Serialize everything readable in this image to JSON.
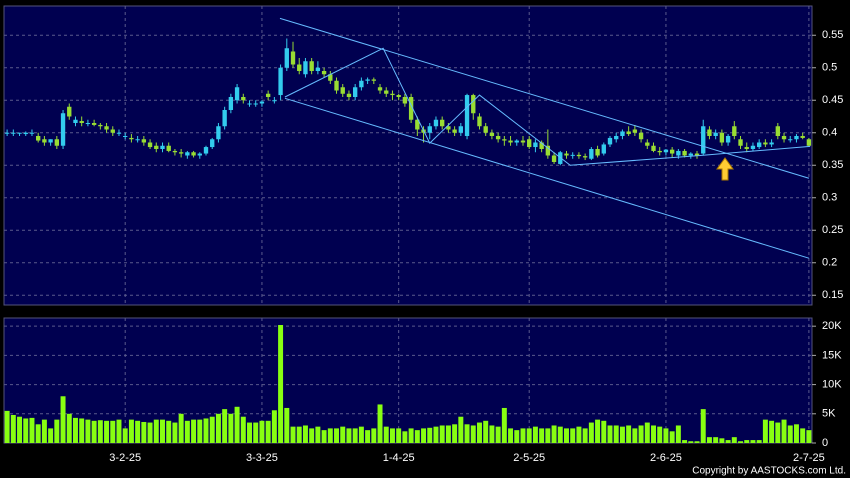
{
  "chart_data": [
    {
      "type": "candlestick",
      "ylim": [
        0.135,
        0.595
      ],
      "yticks": [
        0.15,
        0.2,
        0.25,
        0.3,
        0.35,
        0.4,
        0.45,
        0.5,
        0.55
      ],
      "grid": true,
      "colors": {
        "up": "#33ccee",
        "down": "#99dd33",
        "trendline": "#66bbff"
      },
      "ohlc": [
        [
          0.4,
          0.405,
          0.395,
          0.4
        ],
        [
          0.4,
          0.405,
          0.395,
          0.4
        ],
        [
          0.4,
          0.4,
          0.395,
          0.4
        ],
        [
          0.398,
          0.402,
          0.395,
          0.4
        ],
        [
          0.4,
          0.405,
          0.395,
          0.4
        ],
        [
          0.395,
          0.4,
          0.385,
          0.388
        ],
        [
          0.39,
          0.395,
          0.38,
          0.385
        ],
        [
          0.385,
          0.39,
          0.38,
          0.39
        ],
        [
          0.39,
          0.395,
          0.375,
          0.38
        ],
        [
          0.38,
          0.435,
          0.375,
          0.43
        ],
        [
          0.44,
          0.445,
          0.42,
          0.425
        ],
        [
          0.415,
          0.425,
          0.41,
          0.42
        ],
        [
          0.418,
          0.425,
          0.41,
          0.415
        ],
        [
          0.415,
          0.42,
          0.41,
          0.415
        ],
        [
          0.415,
          0.42,
          0.41,
          0.412
        ],
        [
          0.412,
          0.415,
          0.405,
          0.41
        ],
        [
          0.41,
          0.415,
          0.4,
          0.405
        ],
        [
          0.405,
          0.41,
          0.395,
          0.4
        ],
        [
          0.4,
          0.405,
          0.395,
          0.4
        ],
        [
          0.395,
          0.4,
          0.39,
          0.395
        ],
        [
          0.392,
          0.398,
          0.385,
          0.39
        ],
        [
          0.39,
          0.395,
          0.385,
          0.39
        ],
        [
          0.39,
          0.395,
          0.38,
          0.385
        ],
        [
          0.385,
          0.39,
          0.375,
          0.378
        ],
        [
          0.38,
          0.385,
          0.37,
          0.375
        ],
        [
          0.375,
          0.385,
          0.37,
          0.38
        ],
        [
          0.38,
          0.385,
          0.37,
          0.372
        ],
        [
          0.372,
          0.375,
          0.365,
          0.37
        ],
        [
          0.37,
          0.375,
          0.362,
          0.368
        ],
        [
          0.365,
          0.372,
          0.36,
          0.37
        ],
        [
          0.37,
          0.372,
          0.362,
          0.365
        ],
        [
          0.365,
          0.37,
          0.36,
          0.368
        ],
        [
          0.368,
          0.38,
          0.365,
          0.378
        ],
        [
          0.378,
          0.392,
          0.375,
          0.39
        ],
        [
          0.39,
          0.415,
          0.385,
          0.41
        ],
        [
          0.41,
          0.44,
          0.405,
          0.435
        ],
        [
          0.435,
          0.46,
          0.43,
          0.455
        ],
        [
          0.45,
          0.475,
          0.445,
          0.47
        ],
        [
          0.455,
          0.46,
          0.445,
          0.45
        ],
        [
          0.445,
          0.45,
          0.44,
          0.445
        ],
        [
          0.445,
          0.45,
          0.44,
          0.445
        ],
        [
          0.445,
          0.45,
          0.44,
          0.448
        ],
        [
          0.46,
          0.465,
          0.45,
          0.455
        ],
        [
          0.45,
          0.455,
          0.445,
          0.45
        ],
        [
          0.458,
          0.505,
          0.45,
          0.5
        ],
        [
          0.5,
          0.545,
          0.495,
          0.53
        ],
        [
          0.525,
          0.54,
          0.5,
          0.505
        ],
        [
          0.505,
          0.515,
          0.49,
          0.495
        ],
        [
          0.49,
          0.515,
          0.485,
          0.51
        ],
        [
          0.51,
          0.515,
          0.49,
          0.495
        ],
        [
          0.495,
          0.51,
          0.49,
          0.5
        ],
        [
          0.495,
          0.5,
          0.485,
          0.49
        ],
        [
          0.49,
          0.495,
          0.475,
          0.48
        ],
        [
          0.48,
          0.485,
          0.46,
          0.465
        ],
        [
          0.47,
          0.475,
          0.455,
          0.46
        ],
        [
          0.46,
          0.465,
          0.45,
          0.455
        ],
        [
          0.455,
          0.475,
          0.45,
          0.47
        ],
        [
          0.47,
          0.485,
          0.465,
          0.48
        ],
        [
          0.48,
          0.485,
          0.475,
          0.482
        ],
        [
          0.482,
          0.485,
          0.475,
          0.48
        ],
        [
          0.47,
          0.475,
          0.46,
          0.465
        ],
        [
          0.465,
          0.47,
          0.455,
          0.46
        ],
        [
          0.46,
          0.465,
          0.45,
          0.458
        ],
        [
          0.458,
          0.46,
          0.45,
          0.455
        ],
        [
          0.455,
          0.46,
          0.44,
          0.445
        ],
        [
          0.455,
          0.46,
          0.415,
          0.42
        ],
        [
          0.42,
          0.425,
          0.395,
          0.405
        ],
        [
          0.405,
          0.41,
          0.385,
          0.4
        ],
        [
          0.4,
          0.415,
          0.39,
          0.41
        ],
        [
          0.41,
          0.425,
          0.405,
          0.42
        ],
        [
          0.42,
          0.425,
          0.405,
          0.41
        ],
        [
          0.41,
          0.415,
          0.4,
          0.405
        ],
        [
          0.405,
          0.41,
          0.395,
          0.4
        ],
        [
          0.4,
          0.415,
          0.395,
          0.41
        ],
        [
          0.395,
          0.46,
          0.39,
          0.458
        ],
        [
          0.458,
          0.46,
          0.42,
          0.43
        ],
        [
          0.425,
          0.43,
          0.405,
          0.41
        ],
        [
          0.41,
          0.415,
          0.395,
          0.4
        ],
        [
          0.4,
          0.405,
          0.39,
          0.395
        ],
        [
          0.395,
          0.4,
          0.385,
          0.39
        ],
        [
          0.39,
          0.395,
          0.38,
          0.388
        ],
        [
          0.388,
          0.395,
          0.38,
          0.385
        ],
        [
          0.385,
          0.39,
          0.38,
          0.388
        ],
        [
          0.388,
          0.395,
          0.38,
          0.385
        ],
        [
          0.39,
          0.395,
          0.375,
          0.378
        ],
        [
          0.378,
          0.39,
          0.37,
          0.385
        ],
        [
          0.385,
          0.388,
          0.37,
          0.375
        ],
        [
          0.38,
          0.405,
          0.36,
          0.365
        ],
        [
          0.365,
          0.37,
          0.352,
          0.355
        ],
        [
          0.352,
          0.372,
          0.35,
          0.37
        ],
        [
          0.368,
          0.372,
          0.36,
          0.365
        ],
        [
          0.365,
          0.37,
          0.36,
          0.366
        ],
        [
          0.366,
          0.37,
          0.36,
          0.364
        ],
        [
          0.364,
          0.368,
          0.358,
          0.362
        ],
        [
          0.36,
          0.378,
          0.358,
          0.375
        ],
        [
          0.375,
          0.38,
          0.362,
          0.365
        ],
        [
          0.368,
          0.385,
          0.365,
          0.382
        ],
        [
          0.382,
          0.395,
          0.378,
          0.392
        ],
        [
          0.39,
          0.4,
          0.385,
          0.395
        ],
        [
          0.395,
          0.405,
          0.39,
          0.402
        ],
        [
          0.402,
          0.41,
          0.395,
          0.398
        ],
        [
          0.405,
          0.412,
          0.395,
          0.4
        ],
        [
          0.4,
          0.405,
          0.385,
          0.39
        ],
        [
          0.385,
          0.39,
          0.375,
          0.38
        ],
        [
          0.38,
          0.385,
          0.37,
          0.372
        ],
        [
          0.372,
          0.378,
          0.365,
          0.37
        ],
        [
          0.37,
          0.375,
          0.365,
          0.374
        ],
        [
          0.374,
          0.378,
          0.362,
          0.368
        ],
        [
          0.365,
          0.375,
          0.36,
          0.372
        ],
        [
          0.372,
          0.375,
          0.362,
          0.365
        ],
        [
          0.365,
          0.37,
          0.36,
          0.368
        ],
        [
          0.368,
          0.372,
          0.36,
          0.365
        ],
        [
          0.368,
          0.42,
          0.365,
          0.41
        ],
        [
          0.405,
          0.41,
          0.39,
          0.395
        ],
        [
          0.395,
          0.405,
          0.39,
          0.4
        ],
        [
          0.4,
          0.405,
          0.38,
          0.385
        ],
        [
          0.385,
          0.398,
          0.38,
          0.395
        ],
        [
          0.41,
          0.418,
          0.39,
          0.395
        ],
        [
          0.39,
          0.395,
          0.375,
          0.38
        ],
        [
          0.378,
          0.385,
          0.37,
          0.375
        ],
        [
          0.375,
          0.385,
          0.372,
          0.38
        ],
        [
          0.378,
          0.39,
          0.375,
          0.385
        ],
        [
          0.385,
          0.39,
          0.378,
          0.382
        ],
        [
          0.382,
          0.39,
          0.378,
          0.385
        ],
        [
          0.41,
          0.415,
          0.39,
          0.395
        ],
        [
          0.395,
          0.4,
          0.385,
          0.39
        ],
        [
          0.39,
          0.395,
          0.385,
          0.39
        ],
        [
          0.39,
          0.398,
          0.385,
          0.395
        ],
        [
          0.395,
          0.4,
          0.39,
          0.392
        ],
        [
          0.39,
          0.392,
          0.378,
          0.38
        ]
      ],
      "trendlines": [
        {
          "x": [
            43.9,
            129
          ],
          "y": [
            0.576,
            0.33
          ]
        },
        {
          "x": [
            44.7,
            129
          ],
          "y": [
            0.453,
            0.207
          ]
        },
        {
          "x": [
            44.7,
            60.5,
            68,
            76,
            90.6,
            111.5,
            129.2
          ],
          "y": [
            0.455,
            0.53,
            0.384,
            0.458,
            0.35,
            0.365,
            0.379
          ]
        }
      ]
    },
    {
      "type": "bar",
      "ylim": [
        0,
        21400
      ],
      "yticks": [
        0,
        {
          "value": 5000,
          "label": "5K"
        },
        {
          "value": 10000,
          "label": "10K"
        },
        {
          "value": 15000,
          "label": "15K"
        },
        {
          "value": 20000,
          "label": "20K"
        }
      ],
      "grid": true,
      "color": "#88ff11",
      "categories": [
        null,
        null,
        null,
        null,
        null,
        null,
        null,
        null,
        null,
        null,
        null,
        null,
        null,
        null,
        null,
        null,
        null,
        null,
        null,
        "3-2-25",
        null,
        null,
        null,
        null,
        null,
        null,
        null,
        null,
        null,
        null,
        null,
        null,
        null,
        null,
        null,
        null,
        null,
        null,
        null,
        null,
        null,
        "3-3-25",
        null,
        null,
        null,
        null,
        null,
        null,
        null,
        null,
        null,
        null,
        null,
        null,
        null,
        null,
        null,
        null,
        null,
        null,
        null,
        null,
        null,
        "1-4-25",
        null,
        null,
        null,
        null,
        null,
        null,
        null,
        null,
        null,
        null,
        null,
        null,
        null,
        null,
        null,
        null,
        null,
        null,
        null,
        null,
        "2-5-25",
        null,
        null,
        null,
        null,
        null,
        null,
        null,
        null,
        null,
        null,
        null,
        null,
        null,
        null,
        null,
        null,
        null,
        null,
        null,
        null,
        null,
        "2-6-25",
        null,
        null,
        null,
        null,
        null,
        null,
        null,
        null,
        null,
        null,
        null,
        null,
        null,
        null,
        null,
        null,
        null,
        null,
        null,
        null,
        null,
        null,
        "2-7-25"
      ],
      "values": [
        5500,
        4800,
        4500,
        4200,
        4300,
        3200,
        4000,
        2500,
        4000,
        8000,
        5000,
        4300,
        4200,
        4000,
        3800,
        3900,
        3800,
        3800,
        4000,
        2500,
        4000,
        3800,
        3600,
        3500,
        4000,
        4000,
        3800,
        3500,
        5000,
        3800,
        4000,
        4000,
        4200,
        4500,
        5000,
        5800,
        5000,
        6200,
        4500,
        3500,
        3500,
        3800,
        3800,
        5600,
        20200,
        6000,
        2800,
        2800,
        3000,
        2500,
        2800,
        2200,
        2500,
        2500,
        2800,
        2500,
        2500,
        2800,
        2200,
        2500,
        6600,
        2800,
        2500,
        2500,
        2000,
        2500,
        2200,
        2500,
        2600,
        2800,
        3000,
        3000,
        3200,
        4500,
        3200,
        3000,
        3500,
        3800,
        3000,
        2800,
        6000,
        2500,
        2200,
        2500,
        2500,
        2800,
        2500,
        2500,
        3000,
        2800,
        2500,
        2500,
        2800,
        2500,
        3500,
        4000,
        3800,
        3000,
        3000,
        2800,
        3000,
        2500,
        3000,
        3500,
        3000,
        2800,
        2500,
        2000,
        3000,
        500,
        300,
        300,
        5800,
        1000,
        1000,
        800,
        500,
        1000,
        300,
        500,
        500,
        500,
        4000,
        3800,
        3500,
        4000,
        3000,
        3200,
        2500,
        2200
      ]
    }
  ],
  "copyright": "Copyright by AASTOCKS.com Ltd."
}
